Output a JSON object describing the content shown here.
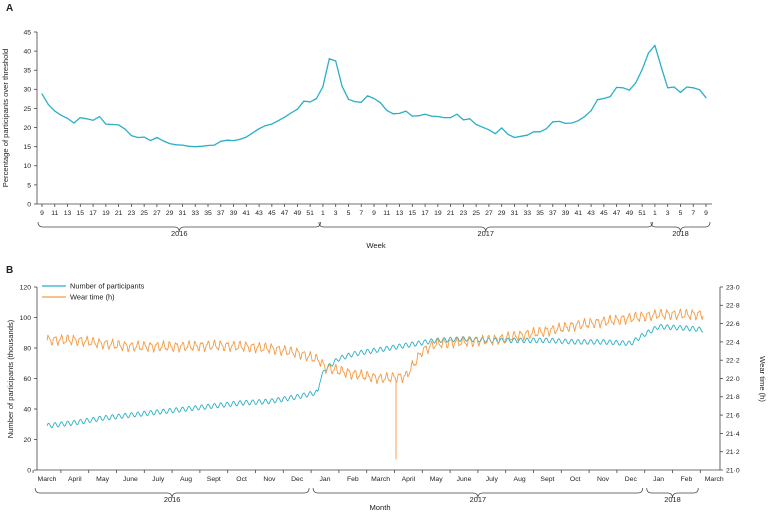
{
  "colors": {
    "blue": "#2bafc6",
    "orange": "#f49a43",
    "axis": "#444444"
  },
  "panel_a": {
    "letter": "A"
  },
  "panel_b": {
    "letter": "B"
  },
  "chart_data": [
    {
      "type": "line",
      "panel": "A",
      "ylabel": "Percentage of participants over threshold",
      "xlabel": "Week",
      "ylim": [
        0,
        45
      ],
      "yticks": [
        0,
        5,
        10,
        15,
        20,
        25,
        30,
        35,
        40,
        45
      ],
      "xtick_labels": [
        "9",
        "11",
        "13",
        "15",
        "17",
        "19",
        "21",
        "23",
        "25",
        "27",
        "29",
        "31",
        "33",
        "35",
        "37",
        "39",
        "41",
        "43",
        "45",
        "47",
        "49",
        "51",
        "1",
        "3",
        "5",
        "7",
        "9",
        "11",
        "13",
        "15",
        "17",
        "19",
        "21",
        "23",
        "25",
        "27",
        "29",
        "31",
        "33",
        "35",
        "37",
        "39",
        "41",
        "43",
        "45",
        "47",
        "49",
        "51",
        "1",
        "3",
        "5",
        "7",
        "9"
      ],
      "year_groups": [
        {
          "label": "2016",
          "start": 0,
          "end": 43
        },
        {
          "label": "2017",
          "start": 44,
          "end": 95
        },
        {
          "label": "2018",
          "start": 96,
          "end": 104
        }
      ],
      "series": [
        {
          "color": "#2bafc6",
          "values": [
            28.8,
            26.0,
            24.3,
            23.2,
            22.4,
            21.2,
            22.6,
            22.3,
            21.9,
            22.9,
            20.9,
            20.8,
            20.7,
            19.6,
            17.9,
            17.4,
            17.5,
            16.6,
            17.4,
            16.5,
            15.8,
            15.5,
            15.4,
            15.1,
            15.0,
            15.1,
            15.3,
            15.4,
            16.4,
            16.7,
            16.6,
            16.9,
            17.5,
            18.6,
            19.7,
            20.5,
            20.9,
            21.8,
            22.7,
            23.8,
            24.8,
            26.9,
            26.7,
            27.6,
            30.7,
            38.0,
            37.4,
            30.8,
            27.4,
            26.8,
            26.6,
            28.3,
            27.6,
            26.5,
            24.5,
            23.6,
            23.7,
            24.3,
            23.0,
            23.1,
            23.5,
            23.0,
            22.9,
            22.6,
            22.6,
            23.5,
            22.0,
            22.3,
            20.8,
            20.1,
            19.4,
            18.4,
            19.9,
            18.2,
            17.4,
            17.7,
            18.0,
            18.9,
            18.9,
            19.7,
            21.5,
            21.6,
            21.1,
            21.2,
            21.8,
            22.9,
            24.4,
            27.3,
            27.6,
            28.1,
            30.5,
            30.4,
            29.8,
            31.7,
            35.2,
            39.5,
            41.5,
            35.8,
            30.4,
            30.6,
            29.2,
            30.6,
            30.4,
            29.9,
            27.8
          ]
        }
      ]
    },
    {
      "type": "line",
      "panel": "B",
      "ylabel": "Number of participants (thousands)",
      "y2label": "Wear time (h)",
      "xlabel": "Month",
      "ylim": [
        0,
        120
      ],
      "yticks": [
        0,
        20,
        40,
        60,
        80,
        100,
        120
      ],
      "y2lim": [
        21.0,
        23.0
      ],
      "y2ticks": [
        "21·0",
        "21·2",
        "21·4",
        "21·6",
        "21·8",
        "22·0",
        "22·2",
        "22·4",
        "22·6",
        "22·8",
        "23·0"
      ],
      "x_months": [
        "March",
        "April",
        "May",
        "June",
        "July",
        "Aug",
        "Sept",
        "Oct",
        "Nov",
        "Dec",
        "Jan",
        "Feb",
        "March",
        "April",
        "May",
        "June",
        "July",
        "Aug",
        "Sept",
        "Oct",
        "Nov",
        "Dec",
        "Jan",
        "Feb",
        "March"
      ],
      "year_groups": [
        {
          "label": "2016",
          "start": 0,
          "end": 9
        },
        {
          "label": "2017",
          "start": 10,
          "end": 21
        },
        {
          "label": "2018",
          "start": 22,
          "end": 23
        }
      ],
      "series": [
        {
          "name": "Number of participants",
          "axis": "left",
          "color": "#2bafc6",
          "points": [
            [
              0,
              29
            ],
            [
              1,
              31
            ],
            [
              2,
              34
            ],
            [
              3,
              36
            ],
            [
              4,
              38
            ],
            [
              5,
              40
            ],
            [
              6,
              42
            ],
            [
              7,
              44
            ],
            [
              8,
              45
            ],
            [
              9,
              48
            ],
            [
              9.75,
              51
            ],
            [
              9.8,
              58
            ],
            [
              10,
              66
            ],
            [
              10.5,
              73
            ],
            [
              11,
              76
            ],
            [
              12,
              79
            ],
            [
              13,
              82
            ],
            [
              14,
              85
            ],
            [
              15,
              86
            ],
            [
              16,
              85
            ],
            [
              17,
              85
            ],
            [
              18,
              85
            ],
            [
              19,
              84
            ],
            [
              20,
              84
            ],
            [
              21,
              83
            ],
            [
              21.4,
              88
            ],
            [
              22,
              94
            ],
            [
              23,
              93
            ],
            [
              23.6,
              92
            ]
          ]
        },
        {
          "name": "Wear time (h)",
          "axis": "right",
          "color": "#f49a43",
          "points": [
            [
              0,
              22.42
            ],
            [
              1,
              22.42
            ],
            [
              2,
              22.38
            ],
            [
              3,
              22.35
            ],
            [
              4,
              22.35
            ],
            [
              5,
              22.35
            ],
            [
              6,
              22.36
            ],
            [
              7,
              22.35
            ],
            [
              8,
              22.33
            ],
            [
              9,
              22.28
            ],
            [
              9.8,
              22.2
            ],
            [
              10,
              22.12
            ],
            [
              11,
              22.05
            ],
            [
              12,
              22.0
            ],
            [
              12.9,
              22.02
            ],
            [
              13.5,
              22.3
            ],
            [
              14,
              22.38
            ],
            [
              15,
              22.4
            ],
            [
              16,
              22.42
            ],
            [
              17,
              22.47
            ],
            [
              18,
              22.52
            ],
            [
              19,
              22.58
            ],
            [
              20,
              22.62
            ],
            [
              21,
              22.66
            ],
            [
              22,
              22.7
            ],
            [
              23,
              22.7
            ],
            [
              23.6,
              22.7
            ]
          ]
        }
      ],
      "annotations": [
        {
          "series": "Wear time (h)",
          "x": 12.55,
          "y": 21.12
        }
      ]
    }
  ]
}
